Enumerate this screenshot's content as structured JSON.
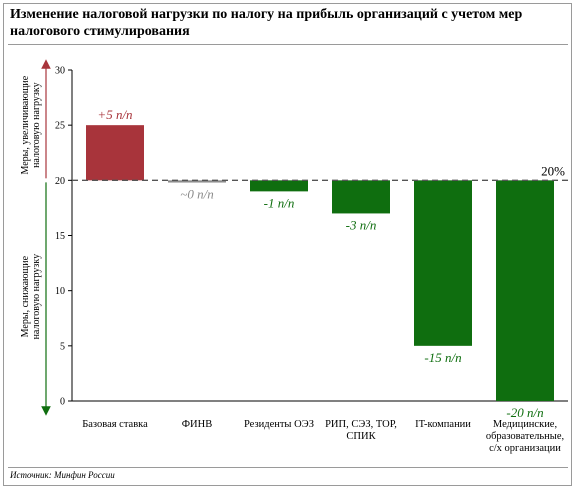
{
  "title": "Изменение налоговой нагрузки по налогу на прибыль организаций с учетом мер налогового стимулирования",
  "source": "Источник: Минфин России",
  "side_labels": {
    "up": [
      "Меры, увеличивающие",
      "налоговую нагрузку"
    ],
    "down": [
      "Меры, снижающие",
      "налоговую нагрузку"
    ]
  },
  "colors": {
    "increase": "#a8343b",
    "neutral": "#8c8c8c",
    "decrease": "#0f6e0f",
    "up_arrow": "#a8343b",
    "down_arrow": "#0f6e0f"
  },
  "chart_data": {
    "type": "bar",
    "categories": [
      [
        "Базовая ставка"
      ],
      [
        "ФИНВ"
      ],
      [
        "Резиденты ОЭЗ"
      ],
      [
        "РИП, СЭЗ, ТОР,",
        "СПИК"
      ],
      [
        "IT-компании"
      ],
      [
        "Медицинские,",
        "образовательные,",
        "с/х организации"
      ]
    ],
    "values": [
      25,
      19.8,
      19,
      17,
      5,
      0
    ],
    "base": 20,
    "data_labels": [
      "+5 п/п",
      "~0 п/п",
      "-1 п/п",
      "-3 п/п",
      "-15 п/п",
      "-20 п/п"
    ],
    "reference_line": {
      "value": 20,
      "label": "20%"
    },
    "yticks": [
      "0",
      "5",
      "10",
      "15",
      "20",
      "25",
      "30"
    ],
    "ylim": [
      0,
      30
    ],
    "grid": false
  }
}
